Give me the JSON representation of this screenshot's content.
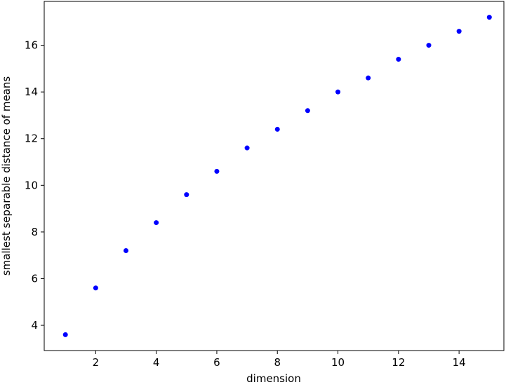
{
  "chart_data": {
    "type": "scatter",
    "x_label": "dimension",
    "y_label": "smallest separable distance of means",
    "series": [
      {
        "color": "#0000ff",
        "x": [
          1,
          2,
          3,
          4,
          5,
          6,
          7,
          8,
          9,
          10,
          11,
          12,
          13,
          14,
          15
        ],
        "values": [
          3.6,
          5.6,
          7.2,
          8.4,
          9.6,
          10.6,
          11.6,
          12.4,
          13.2,
          14.0,
          14.6,
          15.4,
          16.0,
          16.6,
          17.2
        ]
      }
    ],
    "xlim": [
      0.3,
      15.48
    ],
    "xticks": [
      2,
      4,
      6,
      8,
      10,
      12,
      14
    ],
    "ylim": [
      2.92,
      17.88
    ],
    "yticks": [
      4,
      6,
      8,
      10,
      12,
      14,
      16
    ],
    "grid": false
  }
}
